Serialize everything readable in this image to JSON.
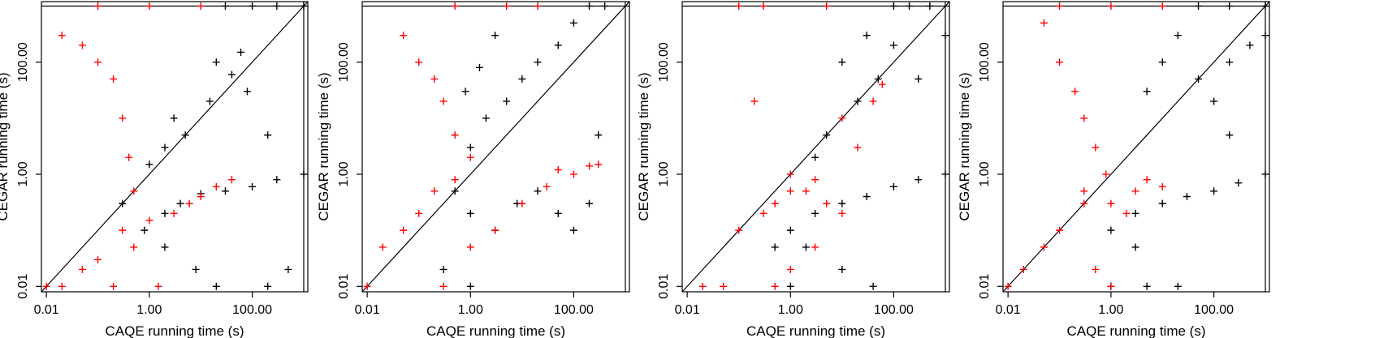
{
  "chart_data": [
    {
      "type": "scatter",
      "title": "",
      "xlabel": "CAQE running time (s)",
      "ylabel": "CEGAR running time (s)",
      "x_scale": "log10",
      "y_scale": "log10",
      "xlim": [
        0.008,
        1200
      ],
      "ylim": [
        0.008,
        1200
      ],
      "timeout": 1000,
      "x_ticks": [
        0.01,
        1.0,
        100.0
      ],
      "y_ticks": [
        0.01,
        1.0,
        100.0
      ],
      "x_tick_labels": [
        "0.01",
        "1.00",
        "100.00"
      ],
      "y_tick_labels": [
        "0.01",
        "1.00",
        "100.00"
      ],
      "diagonal": true,
      "series": [
        {
          "name": "black",
          "color": "#000000",
          "points": [
            [
              0.8,
              0.1
            ],
            [
              2,
              0.2
            ],
            [
              4,
              0.3
            ],
            [
              10,
              0.45
            ],
            [
              30,
              0.5
            ],
            [
              100,
              0.6
            ],
            [
              300,
              0.8
            ],
            [
              1000,
              1.0
            ],
            [
              5,
              5
            ],
            [
              15,
              20
            ],
            [
              40,
              60
            ],
            [
              60,
              150
            ],
            [
              3,
              10
            ],
            [
              20,
              100
            ],
            [
              80,
              30
            ],
            [
              200,
              5
            ],
            [
              1000,
              1000
            ],
            [
              300,
              1000
            ],
            [
              100,
              1000
            ],
            [
              30,
              1000
            ],
            [
              2,
              0.05
            ],
            [
              8,
              0.02
            ],
            [
              20,
              0.01
            ],
            [
              200,
              0.01
            ],
            [
              500,
              0.02
            ],
            [
              0.3,
              0.3
            ],
            [
              1,
              1.5
            ],
            [
              2,
              3
            ]
          ]
        },
        {
          "name": "red",
          "color": "#ff0000",
          "points": [
            [
              0.02,
              300
            ],
            [
              0.05,
              200
            ],
            [
              0.1,
              100
            ],
            [
              0.2,
              50
            ],
            [
              0.3,
              10
            ],
            [
              0.4,
              2
            ],
            [
              0.5,
              0.5
            ],
            [
              0.3,
              0.1
            ],
            [
              0.1,
              0.03
            ],
            [
              0.05,
              0.02
            ],
            [
              0.02,
              0.01
            ],
            [
              0.01,
              0.01
            ],
            [
              3,
              0.2
            ],
            [
              6,
              0.3
            ],
            [
              10,
              0.4
            ],
            [
              20,
              0.6
            ],
            [
              40,
              0.8
            ],
            [
              1,
              0.15
            ],
            [
              0.5,
              0.05
            ],
            [
              10,
              1000
            ],
            [
              1,
              1000
            ],
            [
              0.1,
              1000
            ],
            [
              0.2,
              0.01
            ],
            [
              1.5,
              0.01
            ]
          ]
        }
      ]
    },
    {
      "type": "scatter",
      "title": "",
      "xlabel": "CAQE running time (s)",
      "ylabel": "CEGAR running time (s)",
      "x_scale": "log10",
      "y_scale": "log10",
      "xlim": [
        0.008,
        1200
      ],
      "ylim": [
        0.008,
        1200
      ],
      "timeout": 1000,
      "x_ticks": [
        0.01,
        1.0,
        100.0
      ],
      "y_ticks": [
        0.01,
        1.0,
        100.0
      ],
      "x_tick_labels": [
        "0.01",
        "1.00",
        "100.00"
      ],
      "y_tick_labels": [
        "0.01",
        "1.00",
        "100.00"
      ],
      "diagonal": true,
      "series": [
        {
          "name": "black",
          "color": "#000000",
          "points": [
            [
              0.5,
              0.5
            ],
            [
              1,
              3
            ],
            [
              2,
              10
            ],
            [
              5,
              20
            ],
            [
              10,
              50
            ],
            [
              20,
              100
            ],
            [
              50,
              200
            ],
            [
              100,
              500
            ],
            [
              200,
              1000
            ],
            [
              1,
              0.2
            ],
            [
              3,
              0.1
            ],
            [
              8,
              0.3
            ],
            [
              20,
              0.5
            ],
            [
              50,
              0.2
            ],
            [
              100,
              0.1
            ],
            [
              200,
              0.3
            ],
            [
              0.8,
              30
            ],
            [
              1.5,
              80
            ],
            [
              3,
              300
            ],
            [
              0.3,
              0.02
            ],
            [
              1,
              0.01
            ],
            [
              400,
              1000
            ],
            [
              300,
              5
            ]
          ]
        },
        {
          "name": "red",
          "color": "#ff0000",
          "points": [
            [
              0.05,
              300
            ],
            [
              0.1,
              100
            ],
            [
              0.2,
              50
            ],
            [
              0.3,
              20
            ],
            [
              0.5,
              5
            ],
            [
              0.2,
              0.5
            ],
            [
              0.1,
              0.2
            ],
            [
              0.05,
              0.1
            ],
            [
              0.02,
              0.05
            ],
            [
              0.01,
              0.01
            ],
            [
              0.3,
              0.01
            ],
            [
              1,
              0.05
            ],
            [
              3,
              0.1
            ],
            [
              10,
              0.3
            ],
            [
              30,
              0.6
            ],
            [
              100,
              1.0
            ],
            [
              300,
              1.5
            ],
            [
              50,
              1.2
            ],
            [
              200,
              1.4
            ],
            [
              1,
              2
            ],
            [
              0.5,
              0.8
            ],
            [
              0.5,
              1000
            ],
            [
              5,
              1000
            ],
            [
              20,
              1000
            ]
          ]
        }
      ]
    },
    {
      "type": "scatter",
      "title": "",
      "xlabel": "CAQE running time (s)",
      "ylabel": "CEGAR running time (s)",
      "x_scale": "log10",
      "y_scale": "log10",
      "xlim": [
        0.008,
        1200
      ],
      "ylim": [
        0.008,
        1200
      ],
      "timeout": 1000,
      "x_ticks": [
        0.01,
        1.0,
        100.0
      ],
      "y_ticks": [
        0.01,
        1.0,
        100.0
      ],
      "x_tick_labels": [
        "0.01",
        "1.00",
        "100.00"
      ],
      "y_tick_labels": [
        "0.01",
        "1.00",
        "100.00"
      ],
      "diagonal": true,
      "series": [
        {
          "name": "black",
          "color": "#000000",
          "points": [
            [
              1,
              0.1
            ],
            [
              3,
              0.2
            ],
            [
              10,
              0.3
            ],
            [
              30,
              0.4
            ],
            [
              100,
              0.6
            ],
            [
              300,
              0.8
            ],
            [
              1000,
              1.0
            ],
            [
              5,
              5
            ],
            [
              20,
              20
            ],
            [
              50,
              50
            ],
            [
              10,
              100
            ],
            [
              30,
              300
            ],
            [
              100,
              200
            ],
            [
              300,
              50
            ],
            [
              1000,
              300
            ],
            [
              200,
              1000
            ],
            [
              500,
              1000
            ],
            [
              100,
              1000
            ],
            [
              2,
              0.05
            ],
            [
              10,
              0.02
            ],
            [
              40,
              0.01
            ],
            [
              1,
              0.01
            ],
            [
              0.5,
              0.05
            ],
            [
              3,
              2
            ]
          ]
        },
        {
          "name": "red",
          "color": "#ff0000",
          "points": [
            [
              0.1,
              0.1
            ],
            [
              0.3,
              0.2
            ],
            [
              0.5,
              0.3
            ],
            [
              1,
              0.5
            ],
            [
              2,
              0.5
            ],
            [
              3,
              0.8
            ],
            [
              5,
              0.3
            ],
            [
              10,
              0.2
            ],
            [
              20,
              3
            ],
            [
              40,
              20
            ],
            [
              60,
              40
            ],
            [
              10,
              10
            ],
            [
              0.5,
              0.01
            ],
            [
              0.05,
              0.01
            ],
            [
              0.02,
              0.01
            ],
            [
              1,
              0.02
            ],
            [
              3,
              0.05
            ],
            [
              0.2,
              20
            ],
            [
              0.3,
              1000
            ],
            [
              0.1,
              1000
            ],
            [
              5,
              1000
            ],
            [
              1,
              1
            ]
          ]
        }
      ]
    },
    {
      "type": "scatter",
      "title": "",
      "xlabel": "CAQE running time (s)",
      "ylabel": "CEGAR running time (s)",
      "x_scale": "log10",
      "y_scale": "log10",
      "xlim": [
        0.008,
        1200
      ],
      "ylim": [
        0.008,
        1200
      ],
      "timeout": 1000,
      "x_ticks": [
        0.01,
        1.0,
        100.0
      ],
      "y_ticks": [
        0.01,
        1.0,
        100.0
      ],
      "x_tick_labels": [
        "0.01",
        "1.00",
        "100.00"
      ],
      "y_tick_labels": [
        "0.01",
        "1.00",
        "100.00"
      ],
      "diagonal": true,
      "series": [
        {
          "name": "black",
          "color": "#000000",
          "points": [
            [
              1,
              0.1
            ],
            [
              3,
              0.2
            ],
            [
              10,
              0.3
            ],
            [
              30,
              0.4
            ],
            [
              100,
              0.5
            ],
            [
              300,
              0.7
            ],
            [
              1000,
              1.0
            ],
            [
              5,
              30
            ],
            [
              10,
              100
            ],
            [
              20,
              300
            ],
            [
              50,
              50
            ],
            [
              200,
              100
            ],
            [
              500,
              200
            ],
            [
              1000,
              300
            ],
            [
              100,
              20
            ],
            [
              200,
              5
            ],
            [
              1,
              0.01
            ],
            [
              5,
              0.01
            ],
            [
              20,
              0.01
            ],
            [
              50,
              1000
            ],
            [
              200,
              1000
            ],
            [
              1000,
              1000
            ],
            [
              3,
              0.05
            ]
          ]
        },
        {
          "name": "red",
          "color": "#ff0000",
          "points": [
            [
              0.05,
              500
            ],
            [
              0.1,
              100
            ],
            [
              0.2,
              30
            ],
            [
              0.3,
              10
            ],
            [
              0.5,
              3
            ],
            [
              0.8,
              1
            ],
            [
              0.3,
              0.3
            ],
            [
              0.1,
              0.1
            ],
            [
              0.05,
              0.05
            ],
            [
              0.02,
              0.02
            ],
            [
              0.01,
              0.01
            ],
            [
              1,
              0.3
            ],
            [
              3,
              0.5
            ],
            [
              5,
              0.8
            ],
            [
              10,
              0.6
            ],
            [
              2,
              0.2
            ],
            [
              0.5,
              0.02
            ],
            [
              1,
              0.01
            ],
            [
              0.1,
              1000
            ],
            [
              1,
              1000
            ],
            [
              10,
              1000
            ],
            [
              0.3,
              0.5
            ]
          ]
        }
      ]
    }
  ]
}
